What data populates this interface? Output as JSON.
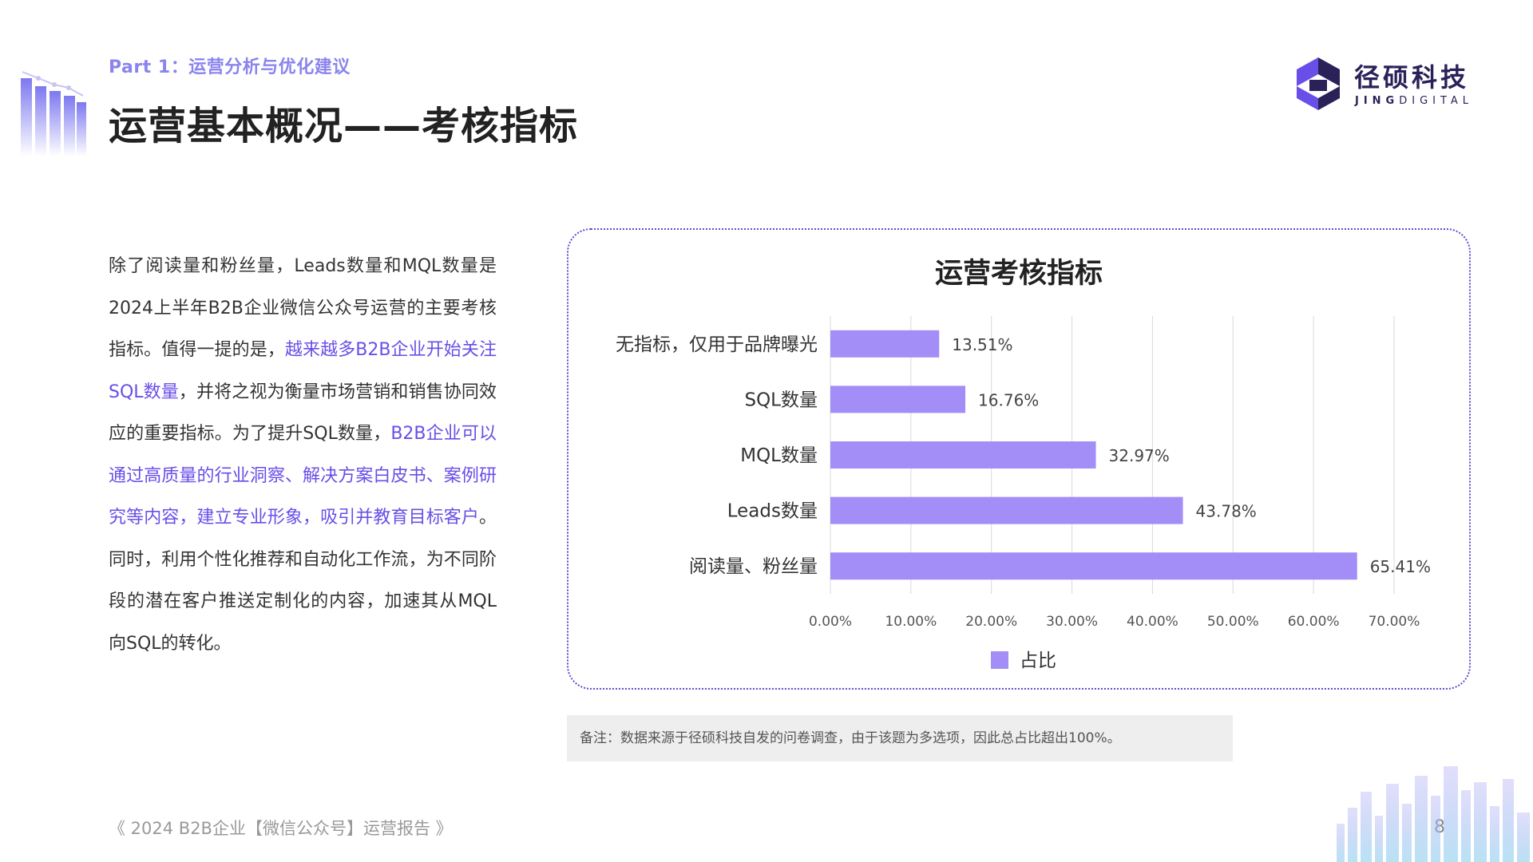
{
  "header": {
    "part_label": "Part 1：运营分析与优化建议",
    "title": "运营基本概况——考核指标"
  },
  "logo": {
    "name_cn": "径硕科技",
    "name_en_bold": "JING",
    "name_en_rest": "DIGITAL"
  },
  "body": {
    "segments": [
      {
        "text": "除了阅读量和粉丝量，Leads数量和MQL数量是2024上半年B2B企业微信公众号运营的主要考核指标。值得一提的是，",
        "highlight": false
      },
      {
        "text": "越来越多B2B企业开始关注SQL数量",
        "highlight": true
      },
      {
        "text": "，并将之视为衡量市场营销和销售协同效应的重要指标。为了提升SQL数量，",
        "highlight": false
      },
      {
        "text": "B2B企业可以通过高质量的行业洞察、解决方案白皮书、案例研究等内容，建立专业形象，吸引并教育目标客户",
        "highlight": true
      },
      {
        "text": "。同时，利用个性化推荐和自动化工作流，为不同阶段的潜在客户推送定制化的内容，加速其从MQL向SQL的转化。",
        "highlight": false
      }
    ]
  },
  "colors": {
    "bar": "#a28ef6",
    "highlight": "#6a4ee8",
    "accent": "#8a84ee",
    "logo": "#2b2159"
  },
  "chart_data": {
    "type": "bar",
    "orientation": "horizontal",
    "title": "运营考核指标",
    "categories": [
      "无指标，仅用于品牌曝光",
      "SQL数量",
      "MQL数量",
      "Leads数量",
      "阅读量、粉丝量"
    ],
    "series": [
      {
        "name": "占比",
        "values": [
          13.51,
          16.76,
          32.97,
          43.78,
          65.41
        ]
      }
    ],
    "data_labels": [
      "13.51%",
      "16.76%",
      "32.97%",
      "43.78%",
      "65.41%"
    ],
    "x_ticks": [
      "0.00%",
      "10.00%",
      "20.00%",
      "30.00%",
      "40.00%",
      "50.00%",
      "60.00%",
      "70.00%"
    ],
    "xlim": [
      0,
      70
    ],
    "grid": true,
    "legend": "bottom"
  },
  "note": "备注：数据来源于径硕科技自发的问卷调查，由于该题为多选项，因此总占比超出100%。",
  "footer": {
    "report_title": "《 2024 B2B企业【微信公众号】运营报告 》",
    "page_number": "8"
  }
}
